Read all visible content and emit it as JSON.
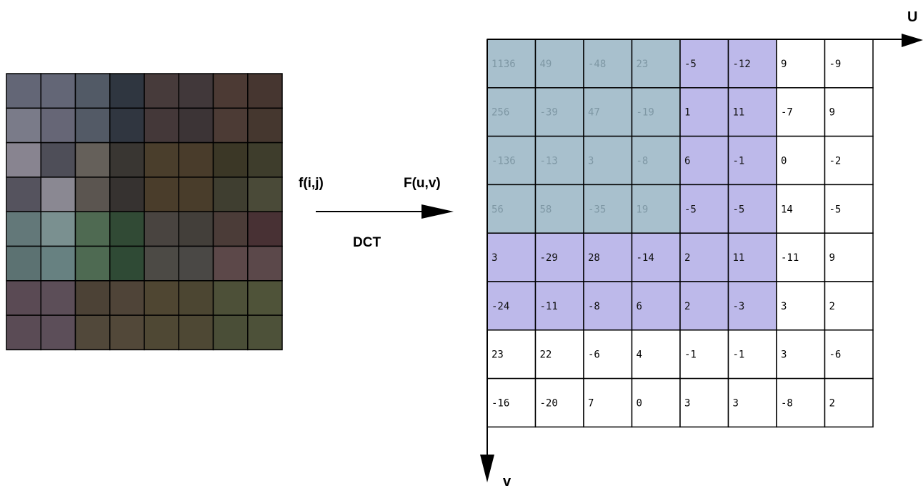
{
  "labels": {
    "input": "f(i,j)",
    "output": "F(u,v)",
    "transform": "DCT",
    "u_axis": "U",
    "v_axis": "v"
  },
  "colors": {
    "low_freq": "#a8c0cd",
    "mid_freq": "#bdb9ea",
    "high_freq": "#ffffff",
    "low_text": "#7e97a4",
    "mid_text": "#111111",
    "high_text": "#000000",
    "pixels": [
      [
        "#636676",
        "#636676",
        "#525a66",
        "#2f3640",
        "#473b3b",
        "#41383a",
        "#4c3a34",
        "#463630"
      ],
      [
        "#7a7b89",
        "#666676",
        "#535a66",
        "#303640",
        "#443839",
        "#3c3436",
        "#4c3b35",
        "#45372f"
      ],
      [
        "#888490",
        "#4e4e58",
        "#65605a",
        "#393632",
        "#4a3e2c",
        "#493c2b",
        "#3b3726",
        "#3e3d2c"
      ],
      [
        "#55535e",
        "#8a8892",
        "#5b5550",
        "#363230",
        "#4a3d2b",
        "#493d2b",
        "#3f3e30",
        "#4a4a38"
      ],
      [
        "#637879",
        "#7a9090",
        "#4f6a52",
        "#314a35",
        "#494440",
        "#433f3a",
        "#4b3c38",
        "#483134"
      ],
      [
        "#5c7272",
        "#678181",
        "#4e6a52",
        "#2f4a35",
        "#4c4a45",
        "#4a4845",
        "#5c4849",
        "#5b484a"
      ],
      [
        "#5a4a54",
        "#5c4e58",
        "#4c4236",
        "#4f4438",
        "#4f4632",
        "#4c4632",
        "#4d5038",
        "#4f5339"
      ],
      [
        "#5a4b55",
        "#5c4e59",
        "#51483a",
        "#524839",
        "#4f4834",
        "#4e4834",
        "#4a4e37",
        "#4d5139"
      ]
    ]
  },
  "grid": {
    "zones": [
      [
        "low",
        "low",
        "low",
        "low",
        "mid",
        "mid",
        "high",
        "high"
      ],
      [
        "low",
        "low",
        "low",
        "low",
        "mid",
        "mid",
        "high",
        "high"
      ],
      [
        "low",
        "low",
        "low",
        "low",
        "mid",
        "mid",
        "high",
        "high"
      ],
      [
        "low",
        "low",
        "low",
        "low",
        "mid",
        "mid",
        "high",
        "high"
      ],
      [
        "mid",
        "mid",
        "mid",
        "mid",
        "mid",
        "mid",
        "high",
        "high"
      ],
      [
        "mid",
        "mid",
        "mid",
        "mid",
        "mid",
        "mid",
        "high",
        "high"
      ],
      [
        "high",
        "high",
        "high",
        "high",
        "high",
        "high",
        "high",
        "high"
      ],
      [
        "high",
        "high",
        "high",
        "high",
        "high",
        "high",
        "high",
        "high"
      ]
    ],
    "values": [
      [
        "1136",
        "49",
        "-48",
        "23",
        "-5",
        "-12",
        "9",
        "-9"
      ],
      [
        "256",
        "-39",
        "47",
        "-19",
        "1",
        "11",
        "-7",
        "9"
      ],
      [
        "-136",
        "-13",
        "3",
        "-8",
        "6",
        "-1",
        "0",
        "-2"
      ],
      [
        "56",
        "58",
        "-35",
        "19",
        "-5",
        "-5",
        "14",
        "-5"
      ],
      [
        "3",
        "-29",
        "28",
        "-14",
        "2",
        "11",
        "-11",
        "9"
      ],
      [
        "-24",
        "-11",
        "-8",
        "6",
        "2",
        "-3",
        "3",
        "2"
      ],
      [
        "23",
        "22",
        "-6",
        "4",
        "-1",
        "-1",
        "3",
        "-6"
      ],
      [
        "-16",
        "-20",
        "7",
        "0",
        "3",
        "3",
        "-8",
        "2"
      ]
    ]
  }
}
